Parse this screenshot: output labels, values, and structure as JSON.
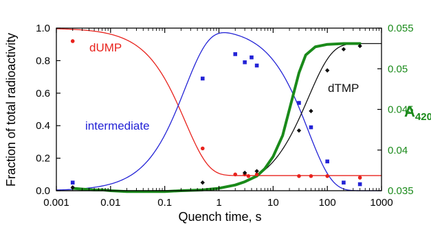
{
  "chart_data": {
    "type": "scatter",
    "xlabel": "Quench time, s",
    "ylabel": "Fraction of total radioactivity",
    "y2label_main": "A",
    "y2label_sub": "420",
    "xscale": "log",
    "xlim": [
      0.001,
      1000
    ],
    "ylim": [
      0,
      1.0
    ],
    "y2lim": [
      0.035,
      0.055
    ],
    "x_ticks": [
      0.001,
      0.01,
      0.1,
      1,
      10,
      100,
      1000
    ],
    "x_tick_labels": [
      "0.001",
      "0.01",
      "0.1",
      "1",
      "10",
      "100",
      "1000"
    ],
    "y_ticks": [
      0,
      0.2,
      0.4,
      0.6,
      0.8,
      1.0
    ],
    "y_tick_labels": [
      "0.0",
      "0.2",
      "0.4",
      "0.6",
      "0.8",
      "1.0"
    ],
    "y2_ticks": [
      0.035,
      0.04,
      0.045,
      0.05,
      0.055
    ],
    "y2_tick_labels": [
      "0.035",
      "0.04",
      "0.045",
      "0.05",
      "0.055"
    ],
    "grid": false,
    "annotations": [
      {
        "text": "dUMP",
        "color": "#e8221c"
      },
      {
        "text": "intermediate",
        "color": "#2323d6"
      },
      {
        "text": "dTMP",
        "color": "#111111"
      }
    ],
    "series": [
      {
        "name": "dUMP",
        "color": "#e8221c",
        "marker": "circle",
        "points": [
          [
            0.002,
            0.92
          ],
          [
            0.5,
            0.26
          ],
          [
            2,
            0.1
          ],
          [
            3,
            0.1
          ],
          [
            3.5,
            0.09
          ],
          [
            5,
            0.1
          ],
          [
            30,
            0.09
          ],
          [
            50,
            0.09
          ],
          [
            100,
            0.09
          ],
          [
            400,
            0.08
          ]
        ],
        "fit": {
          "kind": "decay",
          "plateau": 0.093,
          "k": 4.2
        }
      },
      {
        "name": "intermediate",
        "color": "#2323d6",
        "marker": "square",
        "points": [
          [
            0.002,
            0.05
          ],
          [
            0.5,
            0.69
          ],
          [
            2,
            0.84
          ],
          [
            3,
            0.79
          ],
          [
            4,
            0.82
          ],
          [
            5,
            0.77
          ],
          [
            30,
            0.54
          ],
          [
            50,
            0.39
          ],
          [
            100,
            0.18
          ],
          [
            200,
            0.05
          ],
          [
            400,
            0.04
          ]
        ],
        "fit": {
          "kind": "rise-decay",
          "k1": 4.2,
          "k2": 0.0225
        }
      },
      {
        "name": "dTMP",
        "color": "#111111",
        "marker": "diamond",
        "points": [
          [
            0.002,
            0.02
          ],
          [
            0.5,
            0.05
          ],
          [
            3,
            0.11
          ],
          [
            5,
            0.12
          ],
          [
            30,
            0.37
          ],
          [
            50,
            0.49
          ],
          [
            100,
            0.74
          ],
          [
            200,
            0.87
          ],
          [
            400,
            0.89
          ]
        ],
        "fit": {
          "kind": "sequential",
          "k1": 4.2,
          "k2": 0.0225,
          "max": 0.905
        }
      },
      {
        "name": "A420",
        "color": "#1a8a1a",
        "axis": "right",
        "points": [
          [
            0.002,
            0.0353
          ],
          [
            0.003,
            0.0352
          ],
          [
            0.005,
            0.0351
          ],
          [
            0.007,
            0.0351
          ],
          [
            0.01,
            0.035
          ],
          [
            0.02,
            0.0349
          ],
          [
            0.03,
            0.0349
          ],
          [
            0.05,
            0.0349
          ],
          [
            0.1,
            0.0349
          ],
          [
            0.2,
            0.035
          ],
          [
            0.5,
            0.0351
          ],
          [
            1,
            0.0353
          ],
          [
            2,
            0.0357
          ],
          [
            3,
            0.0361
          ],
          [
            5,
            0.0368
          ],
          [
            7,
            0.0377
          ],
          [
            10,
            0.0392
          ],
          [
            15,
            0.0418
          ],
          [
            20,
            0.045
          ],
          [
            30,
            0.0495
          ],
          [
            40,
            0.0517
          ],
          [
            60,
            0.0527
          ],
          [
            100,
            0.053
          ],
          [
            200,
            0.0531
          ],
          [
            400,
            0.0531
          ]
        ]
      }
    ]
  }
}
